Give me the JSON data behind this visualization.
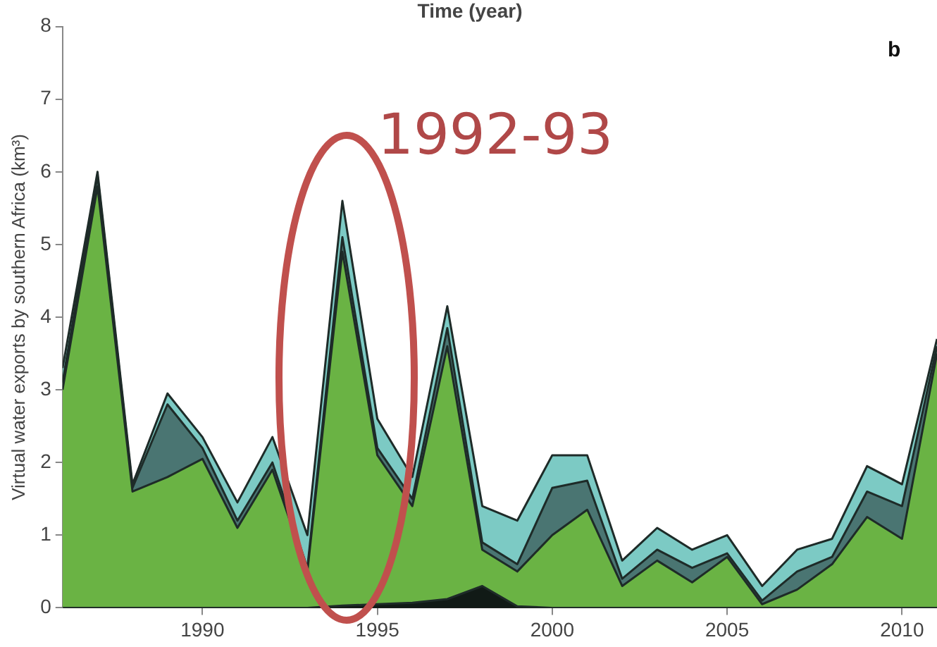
{
  "chart_data": {
    "type": "area",
    "stacked": true,
    "title": "Time (year)",
    "ylabel": "Virtual water exports by southern Africa (km³)",
    "x": [
      1986,
      1987,
      1988,
      1989,
      1990,
      1991,
      1992,
      1993,
      1994,
      1995,
      1996,
      1997,
      1998,
      1999,
      2000,
      2001,
      2002,
      2003,
      2004,
      2005,
      2006,
      2007,
      2008,
      2009,
      2010,
      2011
    ],
    "series": [
      {
        "color": "#111a16",
        "values": [
          0,
          0,
          0,
          0,
          0,
          0,
          0,
          0,
          0.03,
          0.05,
          0.07,
          0.12,
          0.3,
          0.02,
          0,
          0,
          0,
          0,
          0,
          0,
          0,
          0,
          0,
          0,
          0,
          0
        ]
      },
      {
        "color": "#6ab344",
        "values": [
          3.0,
          5.8,
          1.6,
          1.8,
          2.05,
          1.1,
          1.9,
          0.5,
          4.87,
          2.05,
          1.33,
          3.48,
          0.5,
          0.48,
          1.0,
          1.35,
          0.3,
          0.65,
          0.35,
          0.7,
          0.05,
          0.25,
          0.6,
          1.25,
          0.95,
          3.5
        ]
      },
      {
        "color": "#4a7572",
        "values": [
          0.1,
          0.15,
          0.05,
          1.0,
          0.15,
          0.1,
          0.1,
          0.05,
          0.2,
          0.1,
          0.1,
          0.25,
          0.1,
          0.1,
          0.65,
          0.4,
          0.1,
          0.15,
          0.2,
          0.05,
          0.05,
          0.25,
          0.1,
          0.35,
          0.45,
          0.1
        ]
      },
      {
        "color": "#7ccac4",
        "values": [
          0.2,
          0.05,
          0.05,
          0.15,
          0.15,
          0.25,
          0.35,
          0.45,
          0.5,
          0.4,
          0.3,
          0.3,
          0.5,
          0.6,
          0.45,
          0.35,
          0.25,
          0.3,
          0.25,
          0.25,
          0.2,
          0.3,
          0.25,
          0.35,
          0.3,
          0.1
        ]
      }
    ],
    "xlim": [
      1986,
      2011
    ],
    "xticks": [
      1990,
      1995,
      2000,
      2005,
      2010
    ],
    "ylim": [
      0,
      8
    ],
    "yticks": [
      0,
      1,
      2,
      3,
      4,
      5,
      6,
      7,
      8
    ],
    "grid": false,
    "legend": false,
    "marker": "none",
    "line_style": "solid",
    "annotations": [
      "b",
      "1992-93"
    ]
  }
}
